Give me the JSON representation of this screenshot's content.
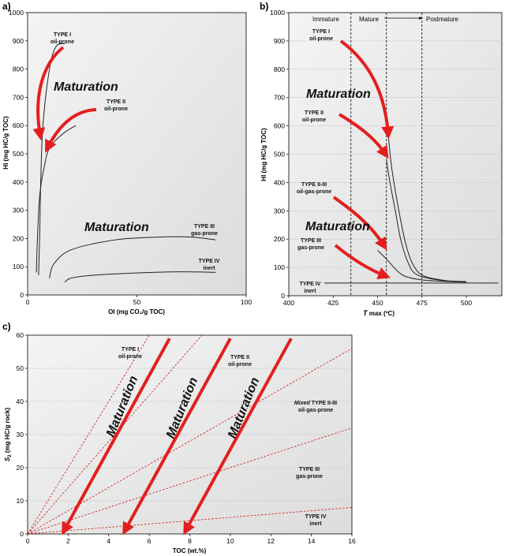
{
  "colors": {
    "arrow": "#e41e1e",
    "line": "#cc1111",
    "curve": "#222222"
  },
  "chart_data": [
    {
      "panel": "a)",
      "type": "line",
      "xlabel": "OI (mg CO₂/g TOC)",
      "ylabel": "HI (mg HC/g TOC)",
      "xlim": [
        0,
        100
      ],
      "ylim": [
        0,
        1000
      ],
      "xticks": [
        0,
        50,
        100
      ],
      "yticks": [
        0,
        100,
        200,
        300,
        400,
        500,
        600,
        700,
        800,
        900,
        1000
      ],
      "series": [
        {
          "name": "TYPE I oil-prone",
          "points": [
            [
              5,
              70
            ],
            [
              5.5,
              200
            ],
            [
              6,
              400
            ],
            [
              7,
              600
            ],
            [
              10,
              800
            ],
            [
              13,
              880
            ],
            [
              17,
              890
            ]
          ]
        },
        {
          "name": "TYPE II oil-prone",
          "points": [
            [
              4,
              80
            ],
            [
              4.5,
              200
            ],
            [
              5.5,
              350
            ],
            [
              7.5,
              450
            ],
            [
              10,
              520
            ],
            [
              16,
              570
            ],
            [
              22,
              600
            ]
          ]
        },
        {
          "name": "TYPE III gas-prone",
          "points": [
            [
              10,
              60
            ],
            [
              12,
              110
            ],
            [
              20,
              160
            ],
            [
              40,
              195
            ],
            [
              60,
              205
            ],
            [
              75,
              205
            ],
            [
              86,
              195
            ]
          ]
        },
        {
          "name": "TYPE IV inert",
          "points": [
            [
              17,
              45
            ],
            [
              20,
              60
            ],
            [
              30,
              70
            ],
            [
              50,
              78
            ],
            [
              70,
              82
            ],
            [
              86,
              80
            ]
          ]
        }
      ],
      "annotations": [
        "Maturation",
        "Maturation"
      ],
      "labels": [
        {
          "type": "TYPE I",
          "sub": "oil-prone"
        },
        {
          "type": "TYPE II",
          "sub": "oil-prone"
        },
        {
          "type": "TYPE III",
          "sub": "gas-prone"
        },
        {
          "type": "TYPE IV",
          "sub": "inert"
        }
      ]
    },
    {
      "panel": "b)",
      "type": "line",
      "xlabel": "T max (ºC)",
      "x_italic": "T",
      "x_rest": " max (ºC)",
      "ylabel": "HI (mg HC/g TOC)",
      "xlim": [
        400,
        520
      ],
      "ylim": [
        0,
        1000
      ],
      "xticks": [
        400,
        425,
        450,
        475,
        500
      ],
      "yticks": [
        0,
        100,
        200,
        300,
        400,
        500,
        600,
        700,
        800,
        900,
        1000
      ],
      "zones": [
        "Immature",
        "Mature",
        "Postmature"
      ],
      "zone_boundaries": [
        435,
        455,
        475
      ],
      "series": [
        {
          "name": "TYPE I oil-prone",
          "points": [
            [
              456,
              570
            ],
            [
              458,
              450
            ],
            [
              462,
              300
            ],
            [
              466,
              180
            ],
            [
              470,
              110
            ],
            [
              476,
              70
            ],
            [
              490,
              52
            ],
            [
              500,
              50
            ]
          ]
        },
        {
          "name": "TYPE II oil-prone",
          "points": [
            [
              455,
              480
            ],
            [
              457,
              400
            ],
            [
              460,
              300
            ],
            [
              463,
              200
            ],
            [
              467,
              120
            ],
            [
              472,
              75
            ],
            [
              485,
              55
            ],
            [
              500,
              50
            ]
          ]
        },
        {
          "name": "TYPE III gas-prone",
          "points": [
            [
              450,
              160
            ],
            [
              455,
              130
            ],
            [
              460,
              95
            ],
            [
              465,
              70
            ],
            [
              475,
              56
            ],
            [
              490,
              50
            ],
            [
              500,
              48
            ]
          ]
        },
        {
          "name": "TYPE IV inert",
          "points": [
            [
              420,
              45
            ],
            [
              470,
              45
            ],
            [
              518,
              45
            ]
          ]
        }
      ],
      "annotations": [
        "Maturation",
        "Maturation"
      ],
      "labels": [
        {
          "type": "TYPE I",
          "sub": "oil-prone"
        },
        {
          "type": "TYPE II",
          "sub": "oil-prone"
        },
        {
          "type": "TYPE II-III",
          "sub": "oil-gas-prone"
        },
        {
          "type": "TYPE III",
          "sub": "gas-prone"
        },
        {
          "type": "TYPE IV",
          "sub": "inert"
        }
      ]
    },
    {
      "panel": "c)",
      "type": "line",
      "xlabel": "TOC (wt.%)",
      "ylabel": "S2 (mg HC/g rock)",
      "ylabel_main": "S",
      "ylabel_sub": "2",
      "ylabel_rest": " (mg HC/g rock)",
      "xlim": [
        0,
        16
      ],
      "ylim": [
        0,
        60
      ],
      "xticks": [
        0,
        2,
        4,
        6,
        8,
        10,
        12,
        14,
        16
      ],
      "yticks": [
        0,
        10,
        20,
        30,
        40,
        50,
        60
      ],
      "boundary_lines": [
        {
          "points": [
            [
              0,
              0
            ],
            [
              6,
              60
            ]
          ]
        },
        {
          "points": [
            [
              0,
              0
            ],
            [
              8.6,
              60
            ]
          ]
        },
        {
          "points": [
            [
              0,
              0
            ],
            [
              16,
              56
            ]
          ]
        },
        {
          "points": [
            [
              0,
              0
            ],
            [
              16,
              32
            ]
          ]
        },
        {
          "points": [
            [
              0,
              0
            ],
            [
              16,
              8
            ]
          ]
        }
      ],
      "maturation_arrows": [
        {
          "from": [
            7,
            59
          ],
          "to": [
            1.8,
            1
          ]
        },
        {
          "from": [
            10,
            59
          ],
          "to": [
            4.8,
            1
          ]
        },
        {
          "from": [
            13,
            59
          ],
          "to": [
            7.8,
            1
          ]
        }
      ],
      "annotations": [
        "Maturation",
        "Maturation",
        "Maturation"
      ],
      "labels": [
        {
          "type": "TYPE I",
          "sub": "oil-prone"
        },
        {
          "type": "TYPE II",
          "sub": "oil-prone"
        },
        {
          "prefix": "Mixed",
          "type": "TYPE II-III",
          "sub": "oil-gas-prone"
        },
        {
          "type": "TYPE III",
          "sub": "gas-prone"
        },
        {
          "type": "TYPE IV",
          "sub": "inert"
        }
      ]
    }
  ]
}
